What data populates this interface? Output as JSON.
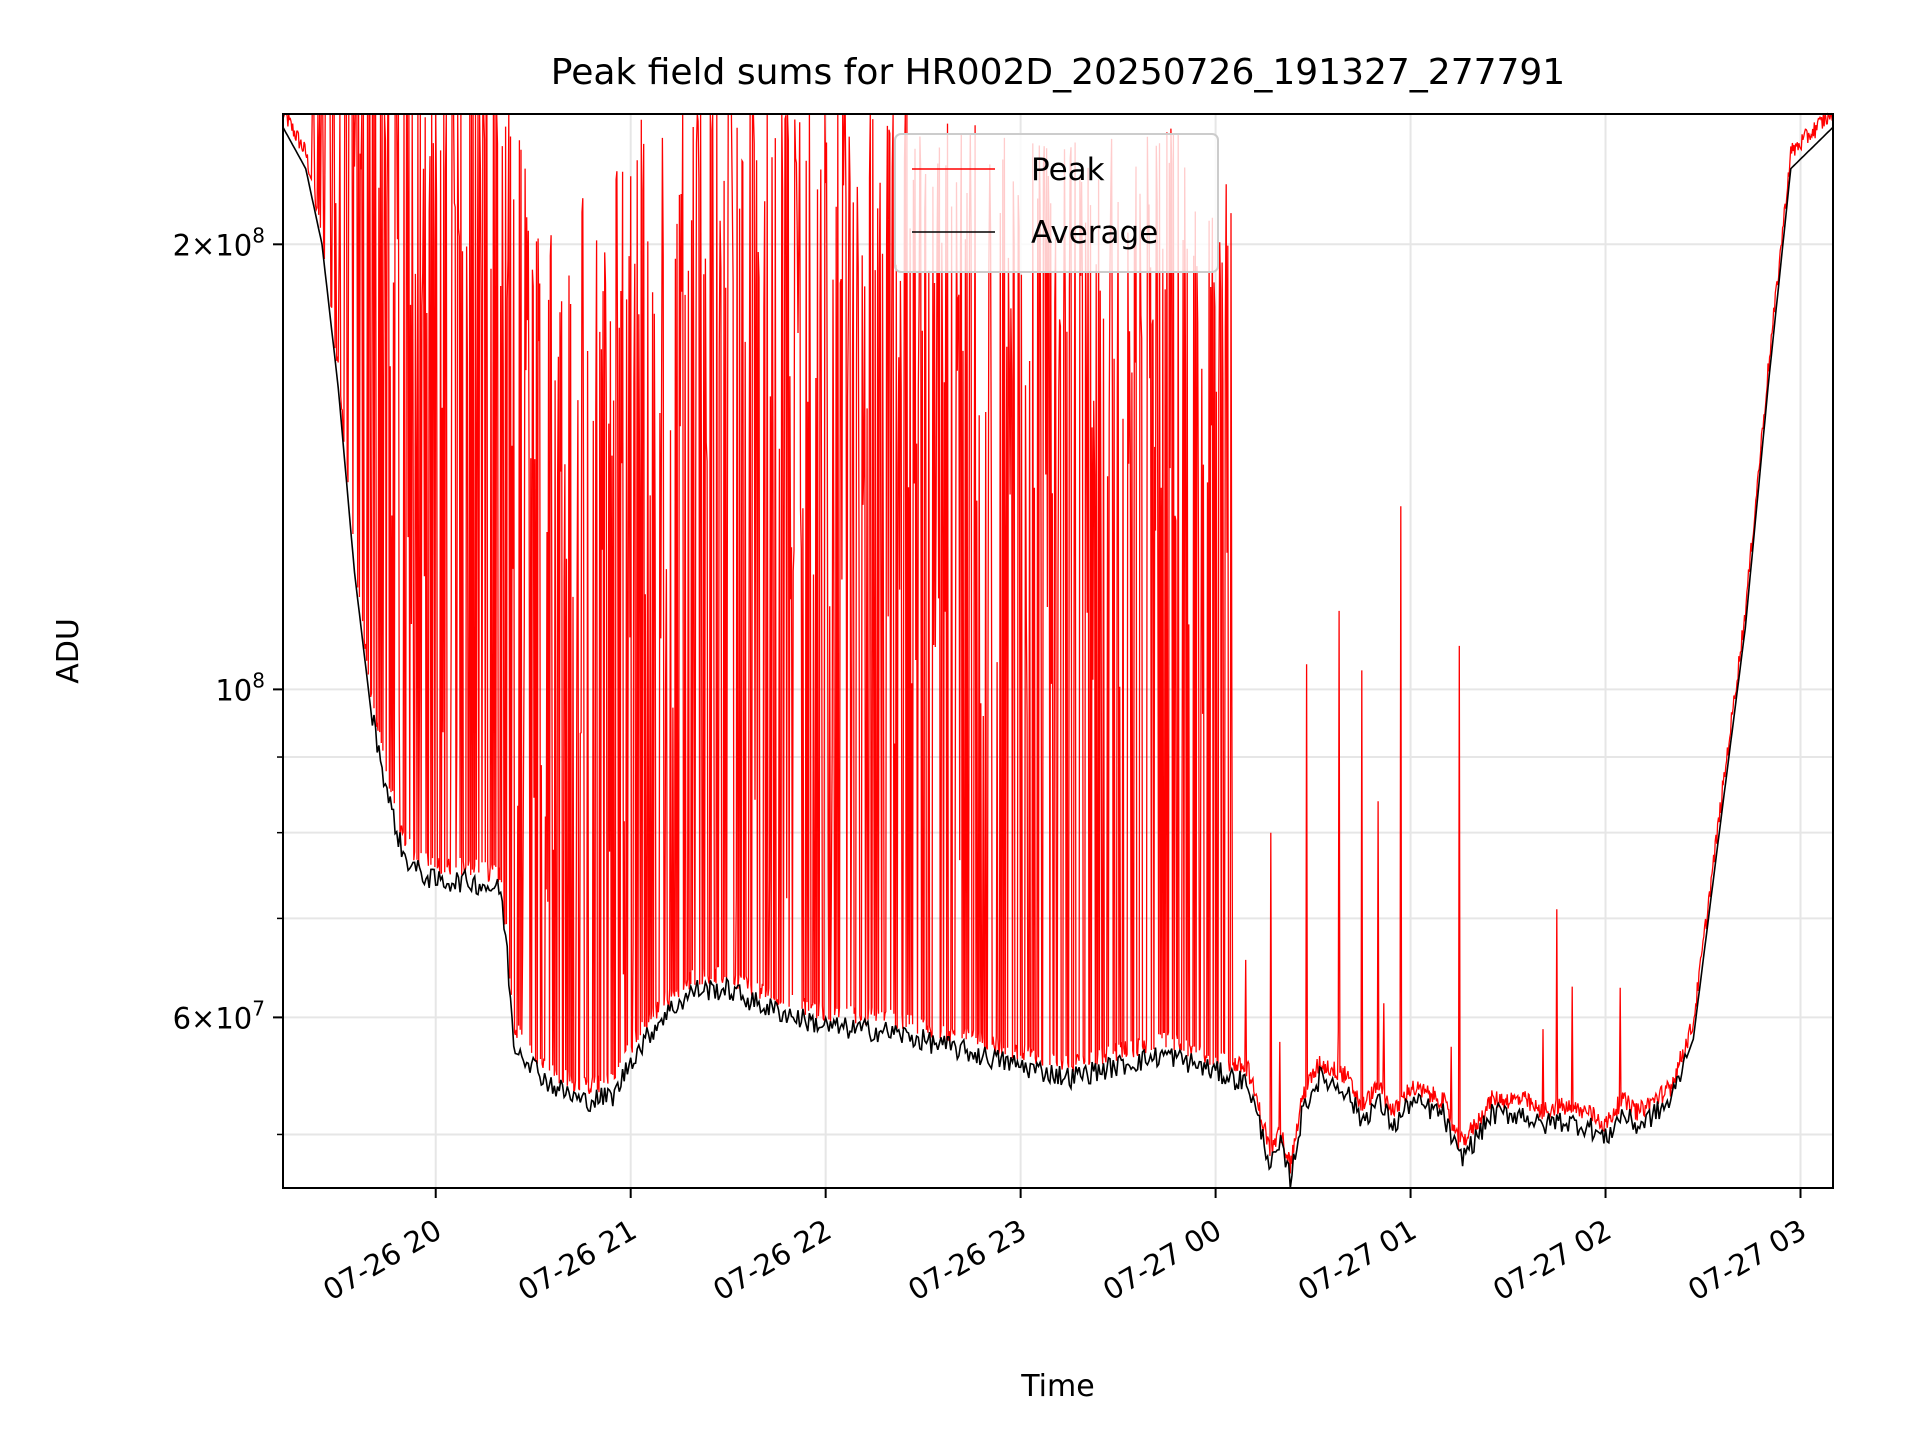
{
  "chart_data": {
    "type": "line",
    "title": "Peak field sums for HR002D_20250726_191327_277791",
    "xlabel": "Time",
    "ylabel": "ADU",
    "yscale": "log",
    "ylim": [
      46000000,
      245000000
    ],
    "xlim": [
      "2025-07-26 19:13",
      "2025-07-27 03:10"
    ],
    "grid": true,
    "legend_position": "upper center",
    "x_ticks": [
      {
        "label": "07-26 20",
        "value": "2025-07-26 20:00"
      },
      {
        "label": "07-26 21",
        "value": "2025-07-26 21:00"
      },
      {
        "label": "07-26 22",
        "value": "2025-07-26 22:00"
      },
      {
        "label": "07-26 23",
        "value": "2025-07-26 23:00"
      },
      {
        "label": "07-27 00",
        "value": "2025-07-27 00:00"
      },
      {
        "label": "07-27 01",
        "value": "2025-07-27 01:00"
      },
      {
        "label": "07-27 02",
        "value": "2025-07-27 02:00"
      },
      {
        "label": "07-27 03",
        "value": "2025-07-27 03:00"
      }
    ],
    "y_ticks": [
      {
        "mantissa": "2",
        "exp": "8",
        "value": 200000000
      },
      {
        "mantissa": "",
        "exp": "8",
        "value": 100000000
      },
      {
        "mantissa": "6",
        "exp": "7",
        "value": 60000000
      }
    ],
    "y_minor_ticks": [
      50000000,
      70000000,
      80000000,
      90000000
    ],
    "series": [
      {
        "name": "Average",
        "color": "#000000",
        "points": [
          [
            "2025-07-26 19:13",
            240000000
          ],
          [
            "2025-07-26 19:20",
            225000000
          ],
          [
            "2025-07-26 19:25",
            200000000
          ],
          [
            "2025-07-26 19:30",
            160000000
          ],
          [
            "2025-07-26 19:35",
            120000000
          ],
          [
            "2025-07-26 19:40",
            97000000
          ],
          [
            "2025-07-26 19:45",
            85000000
          ],
          [
            "2025-07-26 19:50",
            77000000
          ],
          [
            "2025-07-26 19:55",
            75000000
          ],
          [
            "2025-07-26 20:00",
            74000000
          ],
          [
            "2025-07-26 20:10",
            74000000
          ],
          [
            "2025-07-26 20:20",
            73000000
          ],
          [
            "2025-07-26 20:22",
            66000000
          ],
          [
            "2025-07-26 20:24",
            57500000
          ],
          [
            "2025-07-26 20:35",
            54000000
          ],
          [
            "2025-07-26 20:45",
            52500000
          ],
          [
            "2025-07-26 20:55",
            53000000
          ],
          [
            "2025-07-26 21:00",
            56000000
          ],
          [
            "2025-07-26 21:10",
            60000000
          ],
          [
            "2025-07-26 21:20",
            62500000
          ],
          [
            "2025-07-26 21:30",
            62500000
          ],
          [
            "2025-07-26 21:40",
            61000000
          ],
          [
            "2025-07-26 22:00",
            59000000
          ],
          [
            "2025-07-26 22:20",
            58500000
          ],
          [
            "2025-07-26 22:40",
            57000000
          ],
          [
            "2025-07-26 23:00",
            55500000
          ],
          [
            "2025-07-26 23:15",
            54500000
          ],
          [
            "2025-07-26 23:30",
            55500000
          ],
          [
            "2025-07-26 23:45",
            56500000
          ],
          [
            "2025-07-27 00:00",
            55000000
          ],
          [
            "2025-07-27 00:10",
            54000000
          ],
          [
            "2025-07-27 00:17",
            47500000
          ],
          [
            "2025-07-27 00:20",
            49000000
          ],
          [
            "2025-07-27 00:23",
            46500000
          ],
          [
            "2025-07-27 00:27",
            52000000
          ],
          [
            "2025-07-27 00:32",
            54500000
          ],
          [
            "2025-07-27 00:40",
            53500000
          ],
          [
            "2025-07-27 00:45",
            51000000
          ],
          [
            "2025-07-27 00:50",
            52500000
          ],
          [
            "2025-07-27 00:55",
            50500000
          ],
          [
            "2025-07-27 01:00",
            52500000
          ],
          [
            "2025-07-27 01:10",
            51500000
          ],
          [
            "2025-07-27 01:15",
            48000000
          ],
          [
            "2025-07-27 01:20",
            49500000
          ],
          [
            "2025-07-27 01:25",
            51500000
          ],
          [
            "2025-07-27 01:35",
            51500000
          ],
          [
            "2025-07-27 01:40",
            50500000
          ],
          [
            "2025-07-27 01:45",
            51000000
          ],
          [
            "2025-07-27 01:55",
            50500000
          ],
          [
            "2025-07-27 02:00",
            49500000
          ],
          [
            "2025-07-27 02:05",
            51500000
          ],
          [
            "2025-07-27 02:10",
            50500000
          ],
          [
            "2025-07-27 02:20",
            52500000
          ],
          [
            "2025-07-27 02:27",
            58000000
          ],
          [
            "2025-07-27 02:35",
            80000000
          ],
          [
            "2025-07-27 02:43",
            110000000
          ],
          [
            "2025-07-27 02:50",
            160000000
          ],
          [
            "2025-07-27 02:57",
            225000000
          ],
          [
            "2025-07-27 03:10",
            240000000
          ]
        ]
      },
      {
        "name": "Peak",
        "color": "#ff0000",
        "dense_region": [
          "2025-07-26 19:22",
          "2025-07-27 00:05"
        ],
        "notable_spikes": [
          [
            "2025-07-27 00:05",
            102000000
          ],
          [
            "2025-07-27 00:17",
            80000000
          ],
          [
            "2025-07-27 00:28",
            104000000
          ],
          [
            "2025-07-27 00:38",
            113000000
          ],
          [
            "2025-07-27 00:45",
            103000000
          ],
          [
            "2025-07-27 00:50",
            84000000
          ],
          [
            "2025-07-27 00:57",
            133000000
          ],
          [
            "2025-07-27 01:15",
            107000000
          ],
          [
            "2025-07-27 01:45",
            71000000
          ]
        ]
      }
    ]
  }
}
